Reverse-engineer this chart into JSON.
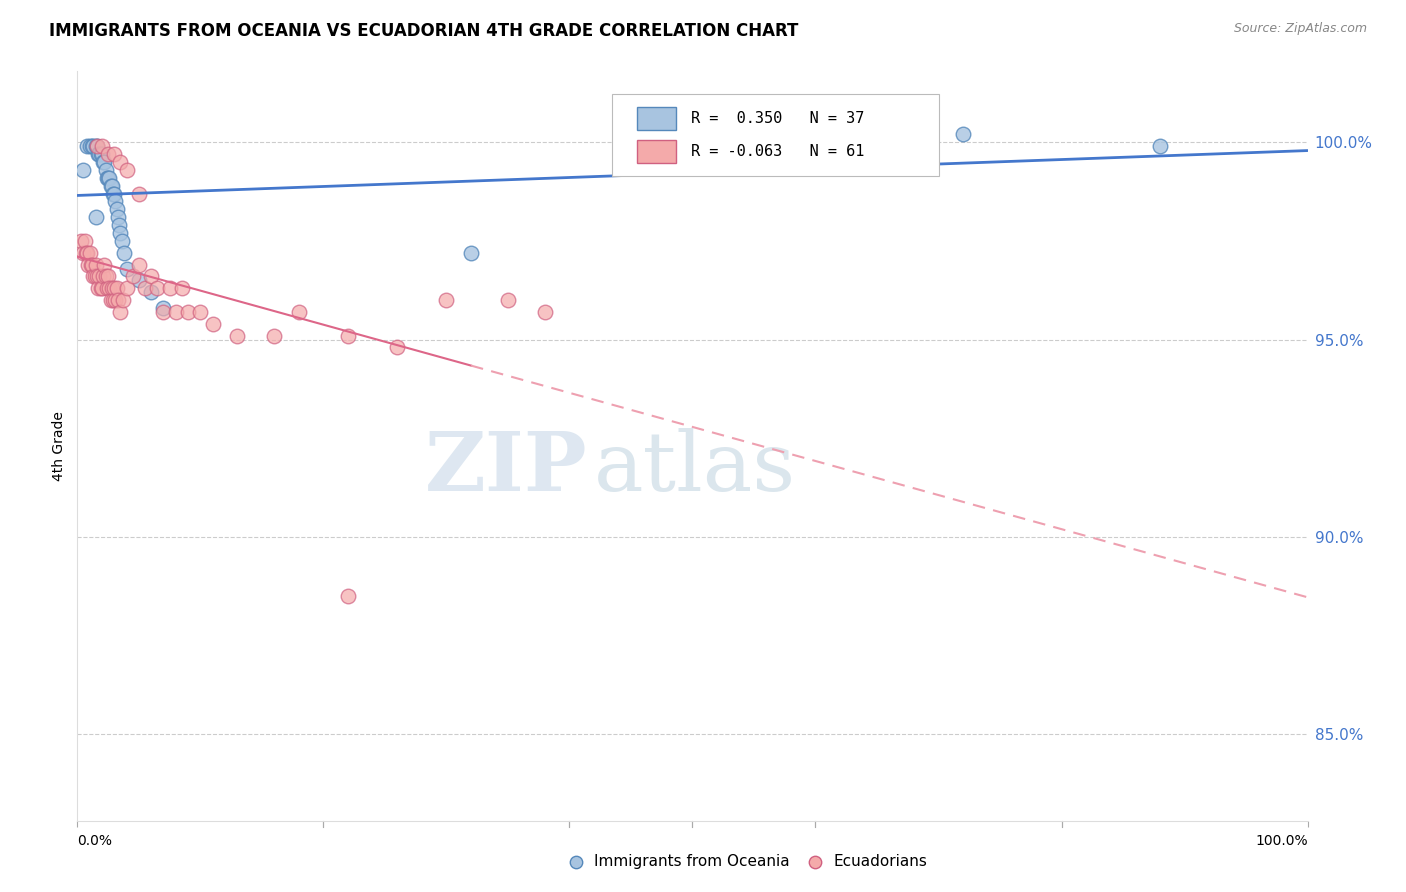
{
  "title": "IMMIGRANTS FROM OCEANIA VS ECUADORIAN 4TH GRADE CORRELATION CHART",
  "source": "Source: ZipAtlas.com",
  "ylabel": "4th Grade",
  "ytick_labels": [
    "85.0%",
    "90.0%",
    "95.0%",
    "100.0%"
  ],
  "ytick_values": [
    0.85,
    0.9,
    0.95,
    1.0
  ],
  "xlim": [
    0.0,
    1.0
  ],
  "ylim": [
    0.828,
    1.018
  ],
  "legend_blue_r": "0.350",
  "legend_blue_n": "37",
  "legend_pink_r": "-0.063",
  "legend_pink_n": "61",
  "blue_color": "#A8C4E0",
  "blue_edge_color": "#5588BB",
  "pink_color": "#F4AAAA",
  "pink_edge_color": "#D06080",
  "trendline_blue_color": "#4477CC",
  "trendline_pink_solid_color": "#DD6688",
  "trendline_pink_dashed_color": "#EEA0B0",
  "watermark_zip": "ZIP",
  "watermark_atlas": "atlas",
  "legend_label_blue": "Immigrants from Oceania",
  "legend_label_pink": "Ecuadorians",
  "blue_points_x": [
    0.005,
    0.008,
    0.01,
    0.012,
    0.013,
    0.015,
    0.016,
    0.017,
    0.018,
    0.019,
    0.02,
    0.021,
    0.022,
    0.023,
    0.024,
    0.025,
    0.026,
    0.027,
    0.028,
    0.029,
    0.03,
    0.031,
    0.032,
    0.033,
    0.034,
    0.035,
    0.036,
    0.038,
    0.04,
    0.05,
    0.06,
    0.07,
    0.32,
    0.65,
    0.72,
    0.88,
    0.015
  ],
  "blue_points_y": [
    0.993,
    0.999,
    0.999,
    0.999,
    0.999,
    0.999,
    0.999,
    0.997,
    0.997,
    0.997,
    0.997,
    0.995,
    0.995,
    0.993,
    0.991,
    0.991,
    0.991,
    0.989,
    0.989,
    0.987,
    0.987,
    0.985,
    0.983,
    0.981,
    0.979,
    0.977,
    0.975,
    0.972,
    0.968,
    0.965,
    0.962,
    0.958,
    0.972,
    0.999,
    1.002,
    0.999,
    0.981
  ],
  "pink_points_x": [
    0.003,
    0.005,
    0.006,
    0.007,
    0.008,
    0.009,
    0.01,
    0.011,
    0.012,
    0.013,
    0.014,
    0.015,
    0.016,
    0.017,
    0.018,
    0.019,
    0.02,
    0.021,
    0.022,
    0.023,
    0.024,
    0.025,
    0.026,
    0.027,
    0.028,
    0.029,
    0.03,
    0.031,
    0.032,
    0.033,
    0.035,
    0.037,
    0.04,
    0.045,
    0.05,
    0.055,
    0.06,
    0.065,
    0.07,
    0.075,
    0.08,
    0.085,
    0.09,
    0.1,
    0.11,
    0.13,
    0.16,
    0.18,
    0.22,
    0.26,
    0.3,
    0.35,
    0.38,
    0.016,
    0.02,
    0.025,
    0.03,
    0.035,
    0.04,
    0.05,
    0.22
  ],
  "pink_points_y": [
    0.975,
    0.972,
    0.975,
    0.972,
    0.972,
    0.969,
    0.972,
    0.969,
    0.969,
    0.966,
    0.966,
    0.969,
    0.966,
    0.963,
    0.966,
    0.963,
    0.963,
    0.966,
    0.969,
    0.966,
    0.963,
    0.966,
    0.963,
    0.96,
    0.963,
    0.96,
    0.963,
    0.96,
    0.963,
    0.96,
    0.957,
    0.96,
    0.963,
    0.966,
    0.969,
    0.963,
    0.966,
    0.963,
    0.957,
    0.963,
    0.957,
    0.963,
    0.957,
    0.957,
    0.954,
    0.951,
    0.951,
    0.957,
    0.951,
    0.948,
    0.96,
    0.96,
    0.957,
    0.999,
    0.999,
    0.997,
    0.997,
    0.995,
    0.993,
    0.987,
    0.885
  ]
}
